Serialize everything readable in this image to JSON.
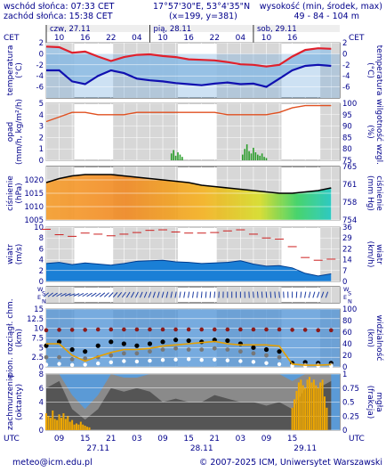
{
  "header": {
    "sunrise": "wschód słońca: 07:33 CET",
    "sunset": "zachód słońca: 15:38 CET",
    "coords": "17°57'30\"E, 53°4'35\"N",
    "grid": "(x=199, y=381)",
    "elevation_label": "wysokość (min, środek, max)",
    "elevation_values": "49 - 84 - 104 m"
  },
  "footer": {
    "email": "meteo@icm.edu.pl",
    "copyright": "© 2007-2025 ICM, Uniwersytet Warszawski"
  },
  "timezone_top": "CET",
  "timezone_bottom": "UTC",
  "days_top": [
    {
      "label": "czw, 27.11",
      "hour": 0
    },
    {
      "label": "pią, 28.11",
      "hour": 24
    },
    {
      "label": "sob, 29.11",
      "hour": 48
    }
  ],
  "days_bottom": [
    {
      "label": "27.11",
      "hour": 12
    },
    {
      "label": "28.11",
      "hour": 36
    },
    {
      "label": "29.11",
      "hour": 60
    }
  ],
  "ticks_top_cet": [
    "10",
    "16",
    "22",
    "04",
    "10",
    "16",
    "22",
    "04",
    "10",
    "16"
  ],
  "ticks_bottom_utc": [
    "09",
    "15",
    "21",
    "03",
    "09",
    "15",
    "21",
    "03",
    "09",
    "15"
  ],
  "colors": {
    "temp_band": "#9ec6e6",
    "temperature": "#e0202c",
    "dewpoint": "#1010b0",
    "precip": "#2a9d2a",
    "humidity": "#e05020",
    "pressure_line": "#000000",
    "wind_fill": "#1a7fd6",
    "gust": "#cc2020",
    "cloud": "#555555",
    "fog": "#f0a800",
    "text": "#00008b"
  },
  "chart_data": [
    {
      "id": "temperature",
      "type": "line",
      "ylabel_left": "temperatura",
      "unit": "(°C)",
      "ylim": [
        -8,
        2
      ],
      "yticks": [
        2,
        0,
        -2,
        -4,
        -6
      ],
      "x": [
        0,
        3,
        6,
        9,
        12,
        15,
        18,
        21,
        24,
        27,
        30,
        33,
        36,
        39,
        42,
        45,
        48,
        51,
        54,
        57,
        60,
        63,
        66
      ],
      "series": [
        {
          "key": "temperature",
          "values": [
            1.3,
            1.2,
            0.2,
            0.4,
            -0.5,
            -1.3,
            -0.6,
            -0.2,
            -0.1,
            -0.4,
            -0.6,
            -1.0,
            -1.1,
            -1.2,
            -1.5,
            -1.9,
            -2.0,
            -2.3,
            -2.0,
            -0.5,
            0.7,
            1.0,
            0.9
          ]
        },
        {
          "key": "dewpoint",
          "values": [
            -3.0,
            -3.0,
            -5.0,
            -5.5,
            -4.0,
            -3.0,
            -3.5,
            -4.5,
            -4.8,
            -5.0,
            -5.3,
            -5.5,
            -5.7,
            -5.4,
            -5.2,
            -5.5,
            -5.4,
            -6.0,
            -4.5,
            -3.0,
            -2.2,
            -2.0,
            -2.2
          ]
        }
      ]
    },
    {
      "id": "precipitation",
      "type": "bar",
      "ylabel_left": "opad (mm/h, kg/m²/h)",
      "ylabel_right": "wilgotność wzgl. (%)",
      "ylim": [
        0,
        5
      ],
      "yticks": [
        5,
        4,
        3,
        2,
        1,
        0
      ],
      "ylim_right": [
        75,
        100
      ],
      "yticks_right": [
        100,
        95,
        90,
        85,
        80,
        75
      ],
      "humidity": {
        "x": [
          0,
          3,
          6,
          9,
          12,
          15,
          18,
          21,
          24,
          27,
          30,
          33,
          36,
          39,
          42,
          45,
          48,
          51,
          54,
          57,
          60,
          63,
          66
        ],
        "values": [
          92,
          94,
          96,
          96,
          95,
          95,
          95,
          96,
          96,
          96,
          96,
          96,
          96,
          96,
          95,
          95,
          95,
          95,
          96,
          98,
          99,
          99,
          99
        ]
      },
      "precip": {
        "x": [
          29,
          29.5,
          30,
          30.5,
          31,
          31.5,
          45.5,
          46,
          46.5,
          47,
          47.5,
          48,
          48.5,
          49,
          49.5,
          50,
          50.5,
          51
        ],
        "values": [
          0.6,
          0.9,
          0.4,
          0.7,
          0.5,
          0.3,
          0.5,
          1.0,
          1.4,
          0.8,
          0.6,
          1.1,
          0.7,
          0.5,
          0.4,
          0.6,
          0.3,
          0.2
        ]
      }
    },
    {
      "id": "pressure",
      "type": "area",
      "ylabel_left": "ciśnienie (hPa)",
      "ylabel_right": "ciśnienie (mm Hg)",
      "ylim": [
        1005,
        1025
      ],
      "yticks": [
        1020,
        1015,
        1010,
        1005
      ],
      "yticks_right": [
        765,
        761,
        758,
        754
      ],
      "x": [
        0,
        3,
        6,
        9,
        12,
        15,
        18,
        21,
        24,
        27,
        30,
        33,
        36,
        39,
        42,
        45,
        48,
        51,
        54,
        57,
        60,
        63,
        66
      ],
      "values": [
        1019,
        1020.5,
        1021.5,
        1022,
        1022,
        1022,
        1021.5,
        1021,
        1020.5,
        1020,
        1019.5,
        1019,
        1018,
        1017.5,
        1017,
        1016.5,
        1016,
        1015.5,
        1015,
        1015,
        1015.5,
        1016,
        1017
      ]
    },
    {
      "id": "wind",
      "type": "area",
      "ylabel_left": "wiatr (m/s)",
      "ylabel_right": "wiatr (km/h)",
      "ylim": [
        0,
        10
      ],
      "yticks": [
        10,
        8,
        6,
        4,
        2,
        0
      ],
      "yticks_right": [
        36,
        29,
        22,
        14,
        7,
        0
      ],
      "x": [
        0,
        3,
        6,
        9,
        12,
        15,
        18,
        21,
        24,
        27,
        30,
        33,
        36,
        39,
        42,
        45,
        48,
        51,
        54,
        57,
        60,
        63,
        66
      ],
      "speed": [
        3.3,
        3.5,
        3.1,
        3.4,
        3.2,
        3.0,
        3.3,
        3.7,
        3.8,
        3.9,
        3.6,
        3.5,
        3.3,
        3.4,
        3.5,
        3.8,
        3.2,
        2.8,
        2.9,
        2.5,
        1.5,
        1.0,
        1.4
      ],
      "gusts": [
        9.6,
        8.6,
        8.3,
        8.9,
        8.7,
        8.4,
        8.7,
        9.0,
        9.4,
        9.5,
        9.1,
        8.9,
        8.9,
        9.0,
        9.3,
        9.5,
        8.7,
        8.0,
        7.8,
        6.4,
        4.4,
        3.9,
        4.1
      ]
    },
    {
      "id": "wind_direction",
      "type": "scatter",
      "ylabel_left": "W S E N",
      "ylabel_right": "W S E N",
      "x": [
        0,
        3,
        6,
        9,
        12,
        15,
        18,
        21,
        24,
        27,
        30,
        33,
        36,
        39,
        42,
        45,
        48,
        51,
        54,
        57,
        60,
        63,
        66
      ],
      "direction_deg": [
        230,
        240,
        250,
        240,
        235,
        225,
        215,
        205,
        200,
        195,
        190,
        190,
        185,
        185,
        180,
        180,
        175,
        175,
        175,
        180,
        190,
        200,
        200
      ]
    },
    {
      "id": "cloud_base",
      "type": "scatter",
      "ylabel_left": "pion. rozciągł. chm. (km)",
      "ylabel_right": "widzialność (km)",
      "ylim": [
        0,
        15
      ],
      "yticks": [
        15,
        12.5,
        10,
        7.5,
        5,
        2.5,
        0
      ],
      "yticks_right": [
        100,
        80,
        60,
        40,
        20,
        0
      ],
      "x": [
        0,
        3,
        6,
        9,
        12,
        15,
        18,
        21,
        24,
        27,
        30,
        33,
        36,
        39,
        42,
        45,
        48,
        51,
        54,
        57,
        60,
        63,
        66
      ],
      "cloud_top": [
        5.5,
        6.5,
        4.5,
        4.0,
        5.5,
        6.5,
        6.0,
        5.5,
        6.0,
        6.5,
        7.0,
        6.8,
        6.5,
        7.0,
        6.8,
        6.0,
        5.0,
        4.5,
        4.0,
        1.0,
        1.2,
        1.0,
        1.0
      ],
      "cloud_mid": [
        2.5,
        2.5,
        2.0,
        2.2,
        2.5,
        3.0,
        3.5,
        3.5,
        4.0,
        4.5,
        4.8,
        4.5,
        4.5,
        4.8,
        4.5,
        4.0,
        3.5,
        3.0,
        2.5,
        0.5,
        0.5,
        0.5,
        0.5
      ],
      "cloud_base_level": [
        0.6,
        0.8,
        0.5,
        0.6,
        0.9,
        1.2,
        1.5,
        1.4,
        1.6,
        1.8,
        1.9,
        2.0,
        1.8,
        1.9,
        1.7,
        1.5,
        1.3,
        1.0,
        0.7,
        0.3,
        0.3,
        0.3,
        0.3
      ],
      "visibility_km": [
        40,
        40,
        20,
        10,
        18,
        25,
        30,
        30,
        32,
        36,
        38,
        40,
        42,
        44,
        40,
        38,
        38,
        38,
        36,
        5,
        3,
        3,
        4
      ],
      "top_dots_km": [
        9.5,
        9.6,
        9.6,
        9.6,
        9.7,
        9.7,
        9.7,
        9.7,
        9.7,
        9.7,
        9.7,
        9.7,
        9.7,
        9.7,
        9.7,
        9.7,
        9.7,
        9.7,
        9.7,
        9.6,
        9.6,
        9.5,
        9.5
      ]
    },
    {
      "id": "cloudiness",
      "type": "area",
      "ylabel_left": "zachmurzenie (oktanty)",
      "ylabel_right": "mgła (frakcja)",
      "ylim": [
        0,
        8
      ],
      "yticks": [
        8,
        6,
        4,
        2,
        0
      ],
      "yticks_right": [
        1,
        0.75,
        0.5,
        0.25,
        0
      ],
      "x": [
        0,
        3,
        6,
        9,
        12,
        15,
        18,
        21,
        24,
        27,
        30,
        33,
        36,
        39,
        42,
        45,
        48,
        51,
        54,
        57,
        60,
        63,
        66
      ],
      "total": [
        8,
        8,
        5,
        3,
        5,
        8,
        7.5,
        7.5,
        8,
        8,
        8,
        8,
        8,
        8,
        8,
        8,
        8,
        8,
        8,
        7,
        8,
        8,
        8
      ],
      "low": [
        6,
        7,
        3,
        1.5,
        3,
        6,
        5.5,
        6,
        5.5,
        4,
        4.5,
        4,
        4,
        5,
        4.5,
        4,
        4,
        3.5,
        4,
        3,
        6,
        6,
        7
      ],
      "fog_fraction": {
        "x": [
          0,
          0.5,
          1,
          1.5,
          2,
          2.5,
          3,
          3.5,
          4,
          4.5,
          5,
          5.5,
          6,
          6.5,
          7,
          7.5,
          8,
          8.5,
          9,
          9.5,
          10,
          57,
          57.5,
          58,
          58.5,
          59,
          59.5,
          60,
          60.5,
          61,
          61.5,
          62,
          62.5,
          63,
          63.5,
          64,
          64.5,
          65
        ],
        "values": [
          0.3,
          0.25,
          0.22,
          0.35,
          0.2,
          0.18,
          0.28,
          0.22,
          0.3,
          0.2,
          0.25,
          0.15,
          0.18,
          0.1,
          0.12,
          0.1,
          0.15,
          0.1,
          0.08,
          0.06,
          0.05,
          0.4,
          0.55,
          0.7,
          0.85,
          0.9,
          0.8,
          0.75,
          0.9,
          0.95,
          0.85,
          0.9,
          0.8,
          0.75,
          0.85,
          0.9,
          0.6,
          0.4
        ]
      }
    }
  ]
}
